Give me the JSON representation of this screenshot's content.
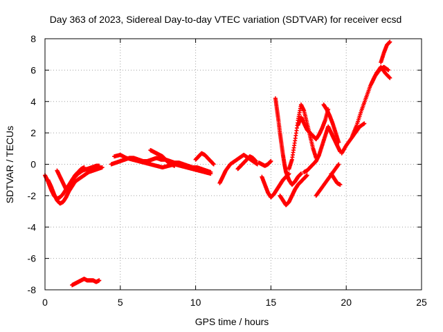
{
  "chart_data": {
    "type": "scatter",
    "title": "Day 363 of 2023, Sidereal Day-to-day VTEC variation (SDTVAR) for receiver ecsd",
    "xlabel": "GPS time / hours",
    "ylabel": "SDTVAR / TECUs",
    "xlim": [
      0,
      25
    ],
    "ylim": [
      -8,
      8
    ],
    "xticks": [
      "0",
      "5",
      "10",
      "15",
      "20",
      "25"
    ],
    "yticks": [
      "-8",
      "-6",
      "-4",
      "-2",
      "0",
      "2",
      "4",
      "6",
      "8"
    ],
    "grid": true,
    "legend": "none",
    "marker": "+",
    "series_color": "#ff0000",
    "series": [
      {
        "x": [
          0.0,
          0.2,
          0.4,
          0.6,
          0.8,
          1.0,
          1.2,
          1.4,
          1.6,
          1.8,
          2.0,
          2.2,
          2.5,
          2.8,
          3.1,
          3.4,
          3.6
        ],
        "y": [
          -0.7,
          -1.1,
          -1.6,
          -2.0,
          -2.2,
          -2.1,
          -1.9,
          -1.6,
          -1.3,
          -1.0,
          -0.8,
          -0.6,
          -0.4,
          -0.3,
          -0.2,
          -0.1,
          -0.1
        ]
      },
      {
        "x": [
          0.2,
          0.4,
          0.6,
          0.8,
          1.0,
          1.2,
          1.4,
          1.6,
          1.8,
          2.0,
          2.3,
          2.6,
          2.9,
          3.2,
          3.5,
          3.8
        ],
        "y": [
          -1.0,
          -1.4,
          -1.9,
          -2.3,
          -2.5,
          -2.4,
          -2.1,
          -1.7,
          -1.4,
          -1.1,
          -0.9,
          -0.7,
          -0.5,
          -0.4,
          -0.3,
          -0.2
        ]
      },
      {
        "x": [
          0.8,
          1.0,
          1.2,
          1.4,
          1.6,
          1.8,
          2.0,
          2.2,
          2.4,
          2.6
        ],
        "y": [
          -0.4,
          -0.8,
          -1.2,
          -1.6,
          -1.4,
          -1.0,
          -0.7,
          -0.5,
          -0.3,
          -0.2
        ]
      },
      {
        "x": [
          1.8,
          2.0,
          2.2,
          2.4,
          2.6,
          2.8,
          3.0,
          3.2,
          3.4,
          3.6
        ],
        "y": [
          -7.7,
          -7.6,
          -7.5,
          -7.4,
          -7.3,
          -7.4,
          -7.4,
          -7.4,
          -7.5,
          -7.4
        ]
      },
      {
        "x": [
          4.4,
          4.7,
          5.0,
          5.3,
          5.6,
          5.9,
          6.2,
          6.5,
          6.8,
          7.1,
          7.4,
          7.7,
          8.0,
          8.3,
          8.6,
          8.9,
          9.2,
          9.5,
          9.8,
          10.1,
          10.4,
          10.7,
          11.0
        ],
        "y": [
          0.0,
          0.1,
          0.2,
          0.3,
          0.4,
          0.4,
          0.3,
          0.2,
          0.2,
          0.3,
          0.4,
          0.3,
          0.3,
          0.2,
          0.1,
          0.1,
          0.0,
          -0.1,
          -0.2,
          -0.2,
          -0.3,
          -0.4,
          -0.5
        ]
      },
      {
        "x": [
          4.6,
          5.0,
          5.4,
          5.8,
          6.2,
          6.6,
          7.0,
          7.4,
          7.8,
          8.2,
          8.6,
          9.0,
          9.4,
          9.8,
          10.2,
          10.6,
          11.0
        ],
        "y": [
          0.5,
          0.6,
          0.4,
          0.3,
          0.2,
          0.1,
          0.0,
          -0.1,
          -0.2,
          -0.1,
          0.0,
          -0.1,
          -0.2,
          -0.3,
          -0.4,
          -0.5,
          -0.6
        ]
      },
      {
        "x": [
          7.0,
          7.2,
          7.4,
          7.6,
          7.8,
          8.0,
          8.2,
          8.4,
          8.6
        ],
        "y": [
          0.9,
          0.8,
          0.7,
          0.6,
          0.5,
          0.3,
          0.1,
          0.0,
          -0.1
        ]
      },
      {
        "x": [
          10.0,
          10.2,
          10.4,
          10.6,
          10.8,
          11.0,
          11.2
        ],
        "y": [
          0.3,
          0.5,
          0.7,
          0.6,
          0.4,
          0.2,
          0.0
        ]
      },
      {
        "x": [
          11.6,
          11.8,
          12.0,
          12.3,
          12.6,
          12.9,
          13.2,
          13.5,
          13.8,
          14.1
        ],
        "y": [
          -1.2,
          -0.8,
          -0.4,
          0.0,
          0.2,
          0.4,
          0.6,
          0.4,
          0.2,
          0.0
        ]
      },
      {
        "x": [
          12.8,
          13.0,
          13.2,
          13.4,
          13.6,
          13.8,
          14.0
        ],
        "y": [
          -0.3,
          -0.1,
          0.1,
          0.3,
          0.5,
          0.4,
          0.2
        ]
      },
      {
        "x": [
          14.2,
          14.4,
          14.6,
          14.8,
          15.0
        ],
        "y": [
          0.1,
          0.0,
          -0.1,
          0.0,
          0.2
        ]
      },
      {
        "x": [
          14.4,
          14.6,
          14.8,
          15.0,
          15.2,
          15.4,
          15.6,
          15.8,
          16.0,
          16.2
        ],
        "y": [
          -0.8,
          -1.3,
          -1.8,
          -2.1,
          -1.9,
          -1.6,
          -1.3,
          -1.0,
          -0.8,
          -0.6
        ]
      },
      {
        "x": [
          15.3,
          15.4,
          15.5,
          15.6,
          15.7,
          15.8,
          15.9,
          16.0,
          16.2,
          16.4,
          16.6,
          16.8,
          17.0
        ],
        "y": [
          4.2,
          3.5,
          2.8,
          2.0,
          1.3,
          0.6,
          0.0,
          -0.5,
          -1.0,
          -1.3,
          -1.1,
          -0.8,
          -0.6
        ]
      },
      {
        "x": [
          15.6,
          15.8,
          16.0,
          16.2,
          16.4,
          16.6,
          16.8,
          17.0,
          17.2,
          17.4
        ],
        "y": [
          -2.0,
          -2.3,
          -2.6,
          -2.4,
          -2.0,
          -1.6,
          -1.3,
          -1.1,
          -0.9,
          -0.7
        ]
      },
      {
        "x": [
          16.2,
          16.4,
          16.6,
          16.8,
          17.0,
          17.2,
          17.4,
          17.6,
          17.8,
          18.0
        ],
        "y": [
          -0.3,
          0.3,
          1.5,
          2.8,
          3.8,
          3.4,
          2.6,
          1.8,
          1.0,
          0.4
        ]
      },
      {
        "x": [
          16.8,
          17.0,
          17.2,
          17.4,
          17.6,
          17.8,
          18.0,
          18.2,
          18.4,
          18.6,
          18.8
        ],
        "y": [
          2.5,
          3.0,
          2.6,
          2.2,
          2.0,
          1.8,
          1.6,
          1.9,
          2.3,
          2.8,
          3.5
        ]
      },
      {
        "x": [
          17.2,
          17.4,
          17.6,
          17.8,
          18.0,
          18.2,
          18.4,
          18.6,
          18.8,
          19.0,
          19.2,
          19.4,
          19.6
        ],
        "y": [
          -0.5,
          -0.4,
          -0.2,
          0.0,
          0.2,
          0.6,
          1.2,
          1.8,
          2.4,
          2.0,
          1.6,
          1.2,
          0.8
        ]
      },
      {
        "x": [
          18.0,
          18.3,
          18.6,
          18.9,
          19.2,
          19.5
        ],
        "y": [
          -2.0,
          -1.6,
          -1.2,
          -0.8,
          -0.4,
          0.0
        ]
      },
      {
        "x": [
          18.5,
          18.7,
          18.9,
          19.1,
          19.3,
          19.5
        ],
        "y": [
          3.8,
          3.5,
          3.1,
          2.6,
          2.0,
          1.4
        ]
      },
      {
        "x": [
          19.0,
          19.2,
          19.4,
          19.6
        ],
        "y": [
          -0.6,
          -0.9,
          -1.2,
          -1.3
        ]
      },
      {
        "x": [
          19.7,
          20.0,
          20.3,
          20.6,
          20.9,
          21.2
        ],
        "y": [
          0.7,
          1.2,
          1.6,
          2.0,
          2.4,
          2.6
        ]
      },
      {
        "x": [
          20.4,
          20.7,
          21.0,
          21.3,
          21.6,
          21.9,
          22.2,
          22.5,
          22.8
        ],
        "y": [
          1.8,
          2.5,
          3.4,
          4.2,
          5.0,
          5.6,
          6.0,
          6.2,
          6.0
        ]
      },
      {
        "x": [
          21.7,
          22.0,
          22.3,
          22.6,
          22.9
        ],
        "y": [
          5.2,
          5.8,
          6.2,
          5.8,
          5.5
        ]
      },
      {
        "x": [
          22.3,
          22.5,
          22.7,
          22.9
        ],
        "y": [
          6.5,
          7.1,
          7.6,
          7.8
        ]
      }
    ]
  }
}
